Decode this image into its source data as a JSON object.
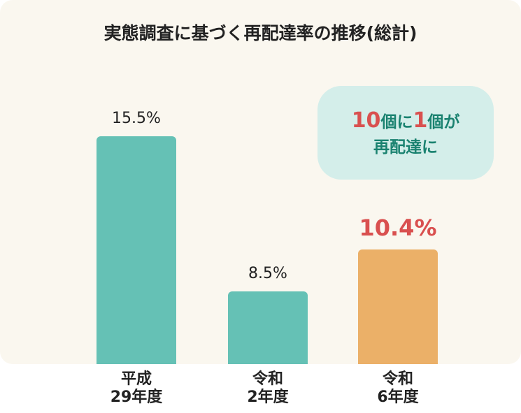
{
  "chart_data": {
    "type": "bar",
    "title": "実態調査に基づく再配達率の推移(総計)",
    "categories": [
      "平成\n29年度",
      "令和\n2年度",
      "令和\n6年度"
    ],
    "values": [
      15.5,
      8.5,
      10.4
    ],
    "value_labels": [
      "15.5%",
      "8.5%",
      "10.4%"
    ],
    "colors": [
      "#65c1b5",
      "#65c1b5",
      "#ebb068"
    ],
    "highlight_color": "#d9504f",
    "callout": {
      "num1": "10",
      "t1": "個に",
      "num2": "1",
      "t2": "個が",
      "line2": "再配達に"
    }
  }
}
